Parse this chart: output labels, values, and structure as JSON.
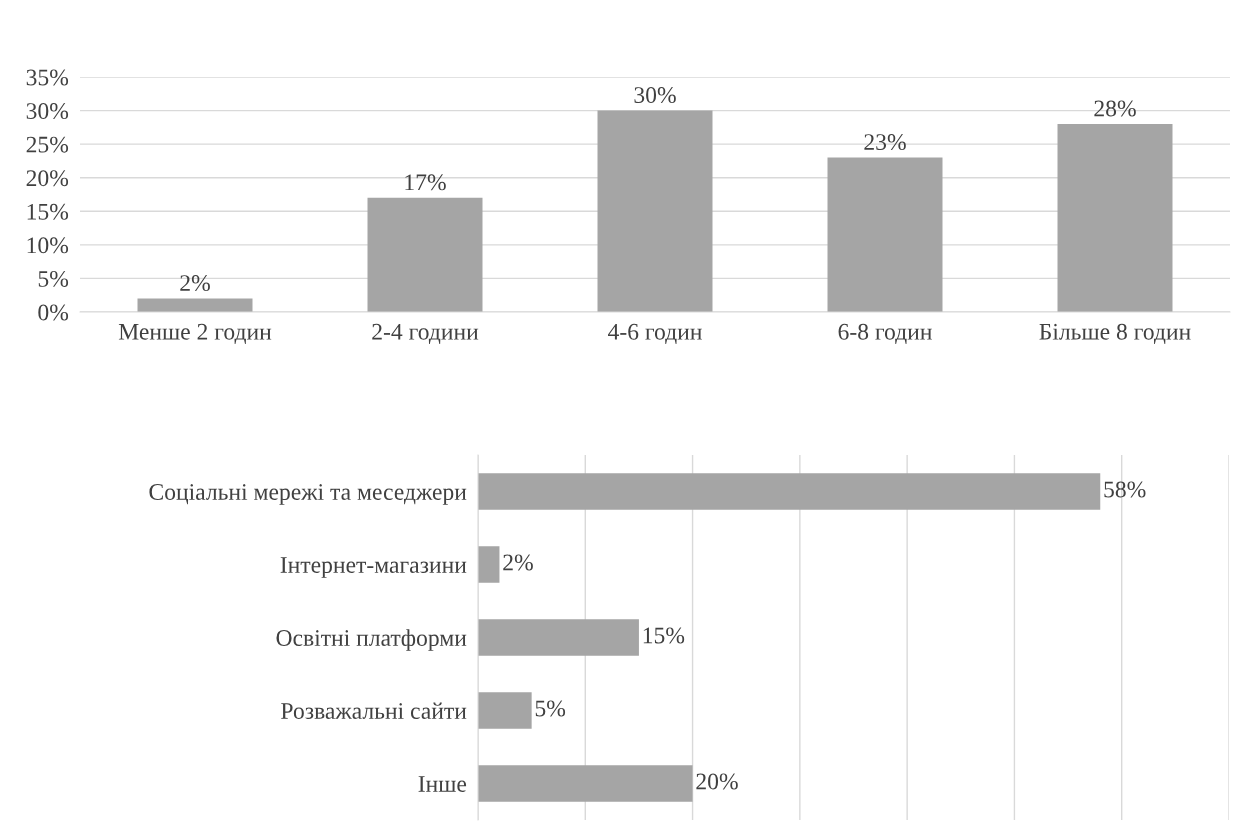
{
  "chart_data": [
    {
      "type": "bar",
      "categories": [
        "Менше 2 годин",
        "2-4 години",
        "4-6 годин",
        "6-8 годин",
        "Більше 8 годин"
      ],
      "values": [
        2,
        17,
        30,
        23,
        28
      ],
      "value_labels": [
        "2%",
        "17%",
        "30%",
        "23%",
        "28%"
      ],
      "color": "#a5a5a5",
      "ylim": [
        0,
        35
      ],
      "yticks": [
        {
          "value": 0,
          "label": "0%"
        },
        {
          "value": 5,
          "label": "5%"
        },
        {
          "value": 10,
          "label": "10%"
        },
        {
          "value": 15,
          "label": "15%"
        },
        {
          "value": 20,
          "label": "20%"
        },
        {
          "value": 25,
          "label": "25%"
        },
        {
          "value": 30,
          "label": "30%"
        },
        {
          "value": 35,
          "label": "35%"
        }
      ],
      "grid": "y",
      "legend": false
    },
    {
      "type": "bar",
      "orientation": "horizontal",
      "categories": [
        "Соціальні мережі та меседжери",
        "Інтернет-магазини",
        "Освітні платформи",
        "Розважальні сайти",
        "Інше"
      ],
      "values": [
        58,
        2,
        15,
        5,
        20
      ],
      "value_labels": [
        "58%",
        "2%",
        "15%",
        "5%",
        "20%"
      ],
      "color": "#a5a5a5",
      "xlim": [
        0,
        70
      ],
      "xticks": [
        {
          "value": 0,
          "label": null
        },
        {
          "value": 10,
          "label": null
        },
        {
          "value": 20,
          "label": null
        },
        {
          "value": 30,
          "label": null
        },
        {
          "value": 40,
          "label": null
        },
        {
          "value": 50,
          "label": null
        },
        {
          "value": 60,
          "label": null
        },
        {
          "value": 70,
          "label": null
        }
      ],
      "grid": "x",
      "tick_labels": "y",
      "legend": false
    }
  ]
}
